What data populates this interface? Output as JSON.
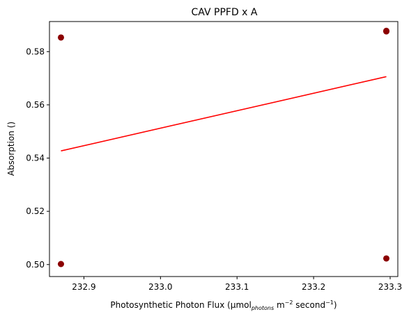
{
  "chart_data": {
    "type": "scatter",
    "title": "CAV PPFD x A",
    "xlabel": {
      "prefix": "Photosynthetic Photon Flux (µmol",
      "sub": "photons",
      "middle": " m",
      "sup1": "−2",
      "middle2": " second",
      "sup2": "−1",
      "suffix": ")"
    },
    "ylabel": "Absorption ()",
    "xlim": [
      232.855,
      233.31
    ],
    "ylim": [
      0.4955,
      0.5913
    ],
    "xticks": [
      232.9,
      233.0,
      233.1,
      233.2,
      233.3
    ],
    "xtick_labels": [
      "232.9",
      "233.0",
      "233.1",
      "233.2",
      "233.3"
    ],
    "yticks": [
      0.5,
      0.52,
      0.54,
      0.56,
      0.58
    ],
    "ytick_labels": [
      "0.50",
      "0.52",
      "0.54",
      "0.56",
      "0.58"
    ],
    "points": [
      {
        "x": 232.87,
        "y": 0.5853
      },
      {
        "x": 232.87,
        "y": 0.5002
      },
      {
        "x": 233.295,
        "y": 0.5876
      },
      {
        "x": 233.295,
        "y": 0.5878
      },
      {
        "x": 233.295,
        "y": 0.5023
      }
    ],
    "fit_line": {
      "x": [
        232.87,
        233.295
      ],
      "y": [
        0.5427,
        0.5706
      ]
    },
    "colors": {
      "points": "#8b0000",
      "fit_line": "#ff0000"
    }
  }
}
